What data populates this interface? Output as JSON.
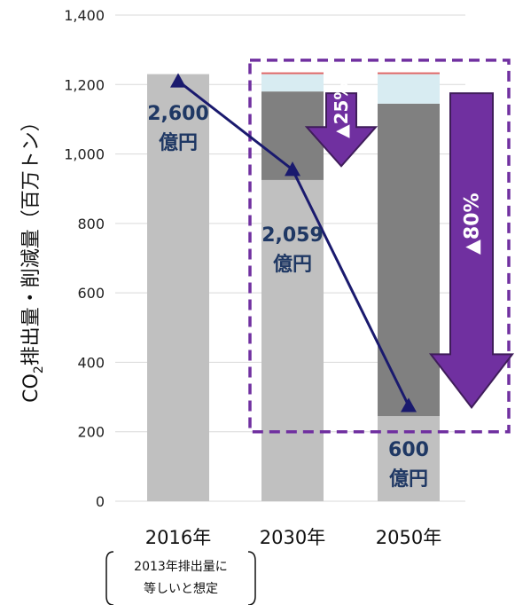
{
  "chart_data": {
    "type": "bar",
    "categories": [
      "2016年",
      "2030年",
      "2050年"
    ],
    "ylabel_prefix": "CO",
    "ylabel_sub": "2",
    "ylabel_suffix": "排出量・削減量（百万トン）",
    "ylim": [
      0,
      1400
    ],
    "yticks": [
      "0",
      "200",
      "400",
      "600",
      "800",
      "1,000",
      "1,200",
      "1,400"
    ],
    "ytick_values": [
      0,
      200,
      400,
      600,
      800,
      1000,
      1200,
      1400
    ],
    "grid": true,
    "stacked_bars": [
      {
        "category": "2016年",
        "segments": [
          {
            "value": 1230,
            "color": "#c0c0c0"
          }
        ]
      },
      {
        "category": "2030年",
        "segments": [
          {
            "value": 925,
            "color": "#c0c0c0"
          },
          {
            "value": 255,
            "color": "#808080"
          },
          {
            "value": 50,
            "color": "#d8ecf2"
          },
          {
            "value": 5,
            "color": "#e06666"
          }
        ]
      },
      {
        "category": "2050年",
        "segments": [
          {
            "value": 245,
            "color": "#c0c0c0"
          },
          {
            "value": 900,
            "color": "#808080"
          },
          {
            "value": 85,
            "color": "#d8ecf2"
          },
          {
            "value": 5,
            "color": "#e06666"
          }
        ]
      }
    ],
    "line_series": {
      "values": [
        1210,
        955,
        275
      ],
      "labels": [
        {
          "line1": "2,600",
          "line2": "億円"
        },
        {
          "line1": "2,059",
          "line2": "億円"
        },
        {
          "line1": "600",
          "line2": "億円"
        }
      ],
      "color": "#1a1a6e",
      "label_color": "#1f3864"
    },
    "reduction_arrows": [
      {
        "label": "▲25%",
        "top": 1230,
        "bottom": 925
      },
      {
        "label": "▲80%",
        "top": 1230,
        "bottom": 245
      }
    ],
    "arrow_color": "#7030a0",
    "dashed_box_color": "#7030a0",
    "note": {
      "line1": "2013年排出量に",
      "line2": "等しいと想定"
    }
  }
}
